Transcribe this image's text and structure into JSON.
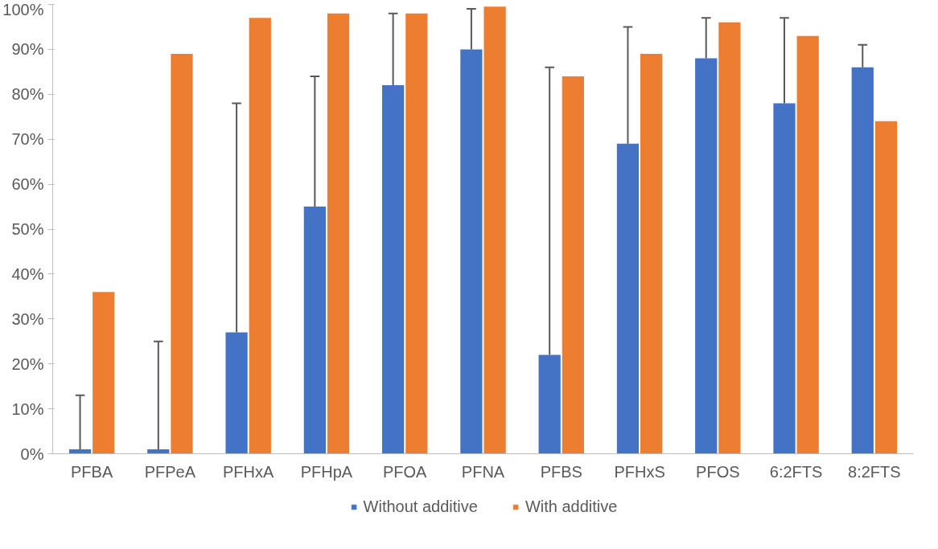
{
  "chart_data": {
    "type": "bar",
    "categories": [
      "PFBA",
      "PFPeA",
      "PFHxA",
      "PFHpA",
      "PFOA",
      "PFNA",
      "PFBS",
      "PFHxS",
      "PFOS",
      "6:2FTS",
      "8:2FTS"
    ],
    "series": [
      {
        "name": "Without additive",
        "color": "#4472c4",
        "values": [
          1,
          1,
          27,
          55,
          82,
          90,
          22,
          69,
          88,
          78,
          86
        ],
        "errors": [
          [
            1,
            13
          ],
          [
            1,
            25
          ],
          [
            27,
            78
          ],
          [
            55,
            84
          ],
          [
            82,
            98
          ],
          [
            90,
            99
          ],
          [
            22,
            86
          ],
          [
            69,
            95
          ],
          [
            88,
            97
          ],
          [
            78,
            97
          ],
          [
            86,
            91
          ]
        ]
      },
      {
        "name": "With additive",
        "color": "#ed7d31",
        "values": [
          36,
          89,
          97,
          98,
          98,
          99.5,
          84,
          89,
          96,
          93,
          74
        ]
      }
    ],
    "ylim": [
      0,
      100
    ],
    "yticks": [
      {
        "value": 0,
        "label": "0%"
      },
      {
        "value": 10,
        "label": "10%"
      },
      {
        "value": 20,
        "label": "20%"
      },
      {
        "value": 30,
        "label": "30%"
      },
      {
        "value": 40,
        "label": "40%"
      },
      {
        "value": 50,
        "label": "50%"
      },
      {
        "value": 60,
        "label": "60%"
      },
      {
        "value": 70,
        "label": "70%"
      },
      {
        "value": 80,
        "label": "80%"
      },
      {
        "value": 90,
        "label": "90%"
      },
      {
        "value": 100,
        "label": "100%"
      }
    ],
    "grid": false,
    "legend": "bottom"
  }
}
